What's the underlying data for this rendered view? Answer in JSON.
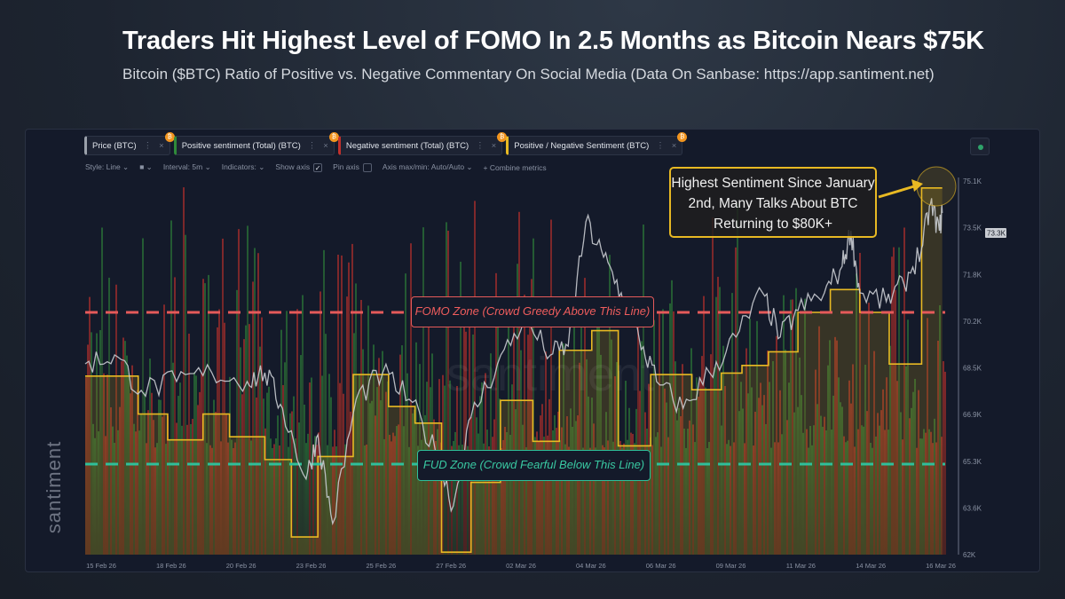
{
  "header": {
    "title": "Traders Hit Highest Level of FOMO In 2.5 Months as Bitcoin Nears $75K",
    "subtitle": "Bitcoin ($BTC) Ratio of Positive vs. Negative Commentary On Social Media (Data On Sanbase: https://app.santiment.net)"
  },
  "watermark": "santiment",
  "metrics": [
    {
      "label": "Price (BTC)",
      "color": "#9aa0aa"
    },
    {
      "label": "Positive sentiment (Total) (BTC)",
      "color": "#2f8a3a"
    },
    {
      "label": "Negative sentiment (Total) (BTC)",
      "color": "#c0302c"
    },
    {
      "label": "Positive / Negative Sentiment (BTC)",
      "color": "#e8b923"
    }
  ],
  "metric_badge": "₿",
  "metric_menu": "⋮",
  "metric_close": "×",
  "toolbar": {
    "style": "Style: Line ⌄",
    "color": "■ ⌄",
    "interval": "Interval: 5m ⌄",
    "indicators": "Indicators: ⌄",
    "show_axis": "Show axis",
    "show_axis_checked": "✓",
    "pin_axis": "Pin axis",
    "axis_maxmin": "Axis max/min: Auto/Auto ⌄",
    "combine": "+ Combine metrics"
  },
  "annotation": "Highest Sentiment Since January 2nd, Many Talks About BTC Returning to $80K+",
  "zones": {
    "fomo": "FOMO Zone (Crowd Greedy Above This Line)",
    "fud": "FUD Zone (Crowd Fearful Below This Line)"
  },
  "colors": {
    "fomo": "#e55a5a",
    "fud": "#2fbf9a",
    "ratio": "#e8b923",
    "price": "#c9ccd2",
    "positive": "#2f8a3a",
    "negative": "#c0302c"
  },
  "chart_data": {
    "type": "line",
    "title": "Bitcoin ($BTC) Ratio of Positive vs. Negative Commentary On Social Media",
    "x_tick_labels": [
      "15 Feb 26",
      "18 Feb 26",
      "20 Feb 26",
      "23 Feb 26",
      "25 Feb 26",
      "27 Feb 26",
      "02 Mar 26",
      "04 Mar 26",
      "06 Mar 26",
      "09 Mar 26",
      "11 Mar 26",
      "14 Mar 26",
      "16 Mar 26"
    ],
    "x_range_days": [
      0,
      29.2
    ],
    "price_axis": {
      "ticks": [
        "75.1K",
        "73.5K",
        "71.8K",
        "70.2K",
        "68.5K",
        "66.9K",
        "65.3K",
        "63.6K",
        "62K"
      ],
      "range": [
        62,
        75.1
      ],
      "unit": "K USD",
      "current": "73.3K"
    },
    "price": [
      [
        0,
        68.69
      ],
      [
        1,
        69.0
      ],
      [
        1.9,
        67.76
      ],
      [
        3.1,
        68.07
      ],
      [
        4.3,
        68.38
      ],
      [
        5.5,
        68.07
      ],
      [
        6.1,
        68.38
      ],
      [
        6.7,
        67.13
      ],
      [
        7.5,
        64.65
      ],
      [
        7.9,
        66.2
      ],
      [
        8.4,
        63.09
      ],
      [
        9.2,
        67.45
      ],
      [
        10.1,
        68.38
      ],
      [
        11,
        67.45
      ],
      [
        11.9,
        65.58
      ],
      [
        12.5,
        63.71
      ],
      [
        13.1,
        66.82
      ],
      [
        14,
        68.69
      ],
      [
        14.9,
        70.25
      ],
      [
        15.8,
        69.0
      ],
      [
        16.4,
        69.31
      ],
      [
        17,
        73.67
      ],
      [
        17.6,
        72.43
      ],
      [
        18.2,
        71.18
      ],
      [
        18.8,
        69.63
      ],
      [
        19.4,
        68.07
      ],
      [
        20.3,
        67.13
      ],
      [
        21.2,
        68.38
      ],
      [
        22.1,
        69.63
      ],
      [
        23,
        71.18
      ],
      [
        23.6,
        69.63
      ],
      [
        24.2,
        70.56
      ],
      [
        25.1,
        71.18
      ],
      [
        25.7,
        72.11
      ],
      [
        26,
        73.36
      ],
      [
        26.3,
        71.18
      ],
      [
        27.2,
        70.87
      ],
      [
        27.8,
        71.49
      ],
      [
        28.4,
        72.74
      ],
      [
        28.7,
        74.29
      ],
      [
        29,
        73.36
      ],
      [
        29.1,
        73.98
      ]
    ],
    "ratio_steps": {
      "starts": [
        0,
        1.8,
        2.8,
        4.0,
        4.9,
        6.1,
        7.0,
        7.9,
        9.1,
        10.3,
        11.2,
        12.1,
        13.1,
        14.1,
        15.2,
        16.1,
        17.2,
        18.1,
        19.2,
        20.6,
        21.6,
        22.3,
        23.2,
        24.2,
        25.3,
        26.3,
        27.3,
        28.4
      ],
      "end": 29.1,
      "values": [
        1.58,
        1.33,
        1.16,
        1.33,
        1.18,
        1.03,
        0.52,
        1.05,
        1.59,
        1.38,
        1.27,
        0.42,
        0.88,
        1.42,
        1.15,
        1.75,
        1.88,
        1.12,
        1.59,
        1.49,
        1.6,
        1.65,
        1.74,
        2.0,
        2.15,
        2.0,
        1.66,
        2.82
      ]
    },
    "ratio_range": [
      0.42,
      3.0
    ],
    "fomo_level": 2.0,
    "fud_level": 1.0
  }
}
